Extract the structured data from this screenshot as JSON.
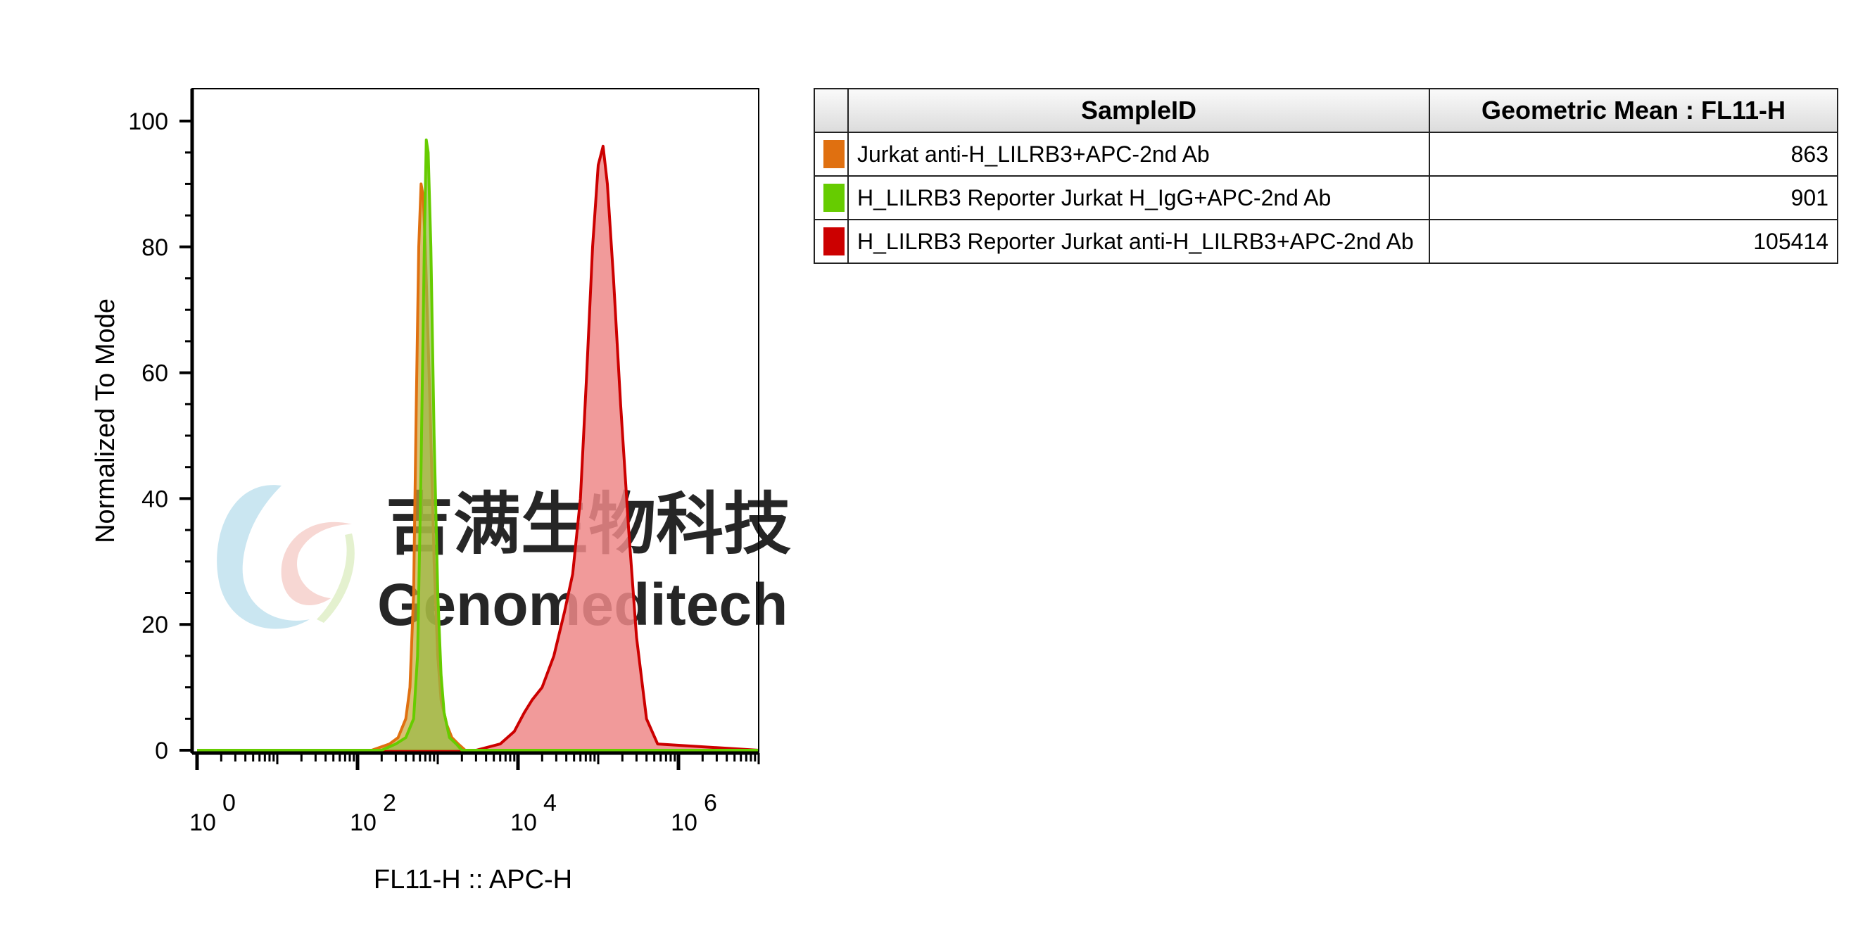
{
  "chart_data": {
    "type": "area",
    "xlabel": "FL11-H :: APC-H",
    "ylabel": "Normalized To Mode",
    "x_scale": "log",
    "xlim": [
      1,
      10000000
    ],
    "ylim": [
      0,
      100
    ],
    "x_ticks": [
      {
        "value": 1,
        "base": "10",
        "exp": "0"
      },
      {
        "value": 100,
        "base": "10",
        "exp": "2"
      },
      {
        "value": 10000,
        "base": "10",
        "exp": "4"
      },
      {
        "value": 1000000,
        "base": "10",
        "exp": "6"
      }
    ],
    "y_ticks": [
      0,
      20,
      40,
      60,
      80,
      100
    ],
    "grid": false,
    "legend": "right",
    "series": [
      {
        "name": "Jurkat anti-H_LILRB3+APC-2nd Ab",
        "color": "#E07010",
        "fill": "#C9A53A",
        "x": [
          1,
          150,
          250,
          320,
          400,
          450,
          500,
          540,
          580,
          620,
          660,
          700,
          800,
          900,
          1000,
          1100,
          1300,
          1500,
          1800,
          2200,
          3000,
          10000000
        ],
        "y": [
          0,
          0,
          1,
          2,
          5,
          10,
          25,
          55,
          80,
          90,
          88,
          80,
          55,
          30,
          15,
          8,
          4,
          2,
          1,
          0,
          0,
          0
        ]
      },
      {
        "name": "H_LILRB3 Reporter Jurkat H_IgG+APC-2nd Ab",
        "color": "#66CC00",
        "fill": "#99BB44",
        "x": [
          1,
          200,
          300,
          400,
          500,
          560,
          620,
          680,
          720,
          760,
          820,
          900,
          1000,
          1100,
          1200,
          1400,
          1700,
          2000,
          3000,
          10000000
        ],
        "y": [
          0,
          0,
          1,
          2,
          5,
          15,
          45,
          80,
          97,
          95,
          80,
          50,
          25,
          12,
          6,
          2,
          1,
          0,
          0,
          0
        ]
      },
      {
        "name": "H_LILRB3 Reporter Jurkat anti-H_LILRB3+APC-2nd Ab",
        "color": "#CC0000",
        "fill": "#EE8888",
        "x": [
          1,
          3000,
          6000,
          9000,
          12000,
          15000,
          20000,
          28000,
          38000,
          48000,
          60000,
          72000,
          85000,
          100000,
          115000,
          130000,
          155000,
          190000,
          240000,
          300000,
          400000,
          550000,
          10000000
        ],
        "y": [
          0,
          0,
          1,
          3,
          6,
          8,
          10,
          15,
          22,
          28,
          40,
          60,
          80,
          93,
          96,
          90,
          75,
          55,
          35,
          18,
          5,
          1,
          0
        ]
      }
    ]
  },
  "legend": {
    "headers": [
      "SampleID",
      "Geometric Mean : FL11-H"
    ],
    "rows": [
      {
        "color": "#E07010",
        "sample": "Jurkat anti-H_LILRB3+APC-2nd Ab",
        "value": "863"
      },
      {
        "color": "#66CC00",
        "sample": "H_LILRB3 Reporter Jurkat H_IgG+APC-2nd Ab",
        "value": "901"
      },
      {
        "color": "#CC0000",
        "sample": "H_LILRB3 Reporter Jurkat anti-H_LILRB3+APC-2nd Ab",
        "value": "105414"
      }
    ]
  },
  "watermark": {
    "cn": "吉满生物科技",
    "en": "Genomeditech",
    "text_color": "#c8c8c8"
  }
}
